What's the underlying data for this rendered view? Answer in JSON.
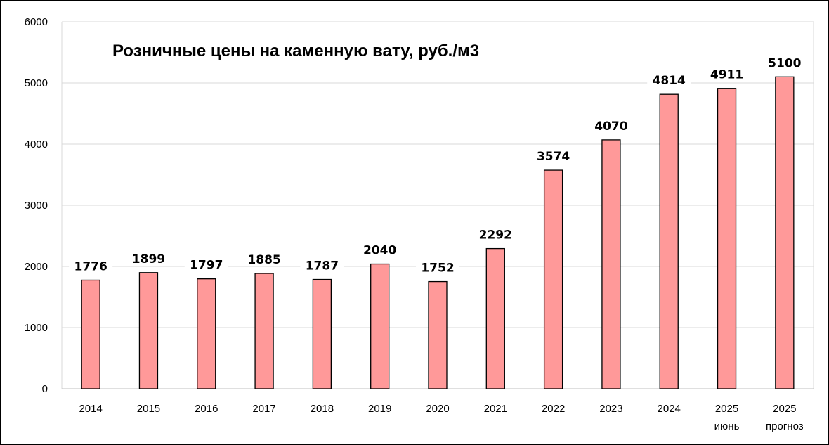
{
  "chart_data": {
    "type": "bar",
    "title": "Розничные цены на каменную вату, руб./м3",
    "categories": [
      [
        "2014"
      ],
      [
        "2015"
      ],
      [
        "2016"
      ],
      [
        "2017"
      ],
      [
        "2018"
      ],
      [
        "2019"
      ],
      [
        "2020"
      ],
      [
        "2021"
      ],
      [
        "2022"
      ],
      [
        "2023"
      ],
      [
        "2024"
      ],
      [
        "2025",
        "июнь"
      ],
      [
        "2025",
        "прогноз"
      ]
    ],
    "values": [
      1776,
      1899,
      1797,
      1885,
      1787,
      2040,
      1752,
      2292,
      3574,
      4070,
      4814,
      4911,
      5100
    ],
    "xlabel": "",
    "ylabel": "",
    "ylim": [
      0,
      6000
    ],
    "yticks": [
      0,
      1000,
      2000,
      3000,
      4000,
      5000,
      6000
    ],
    "grid": true,
    "legend": "none",
    "bar_color": "#FF9999",
    "bar_edge_color": "#000000"
  }
}
